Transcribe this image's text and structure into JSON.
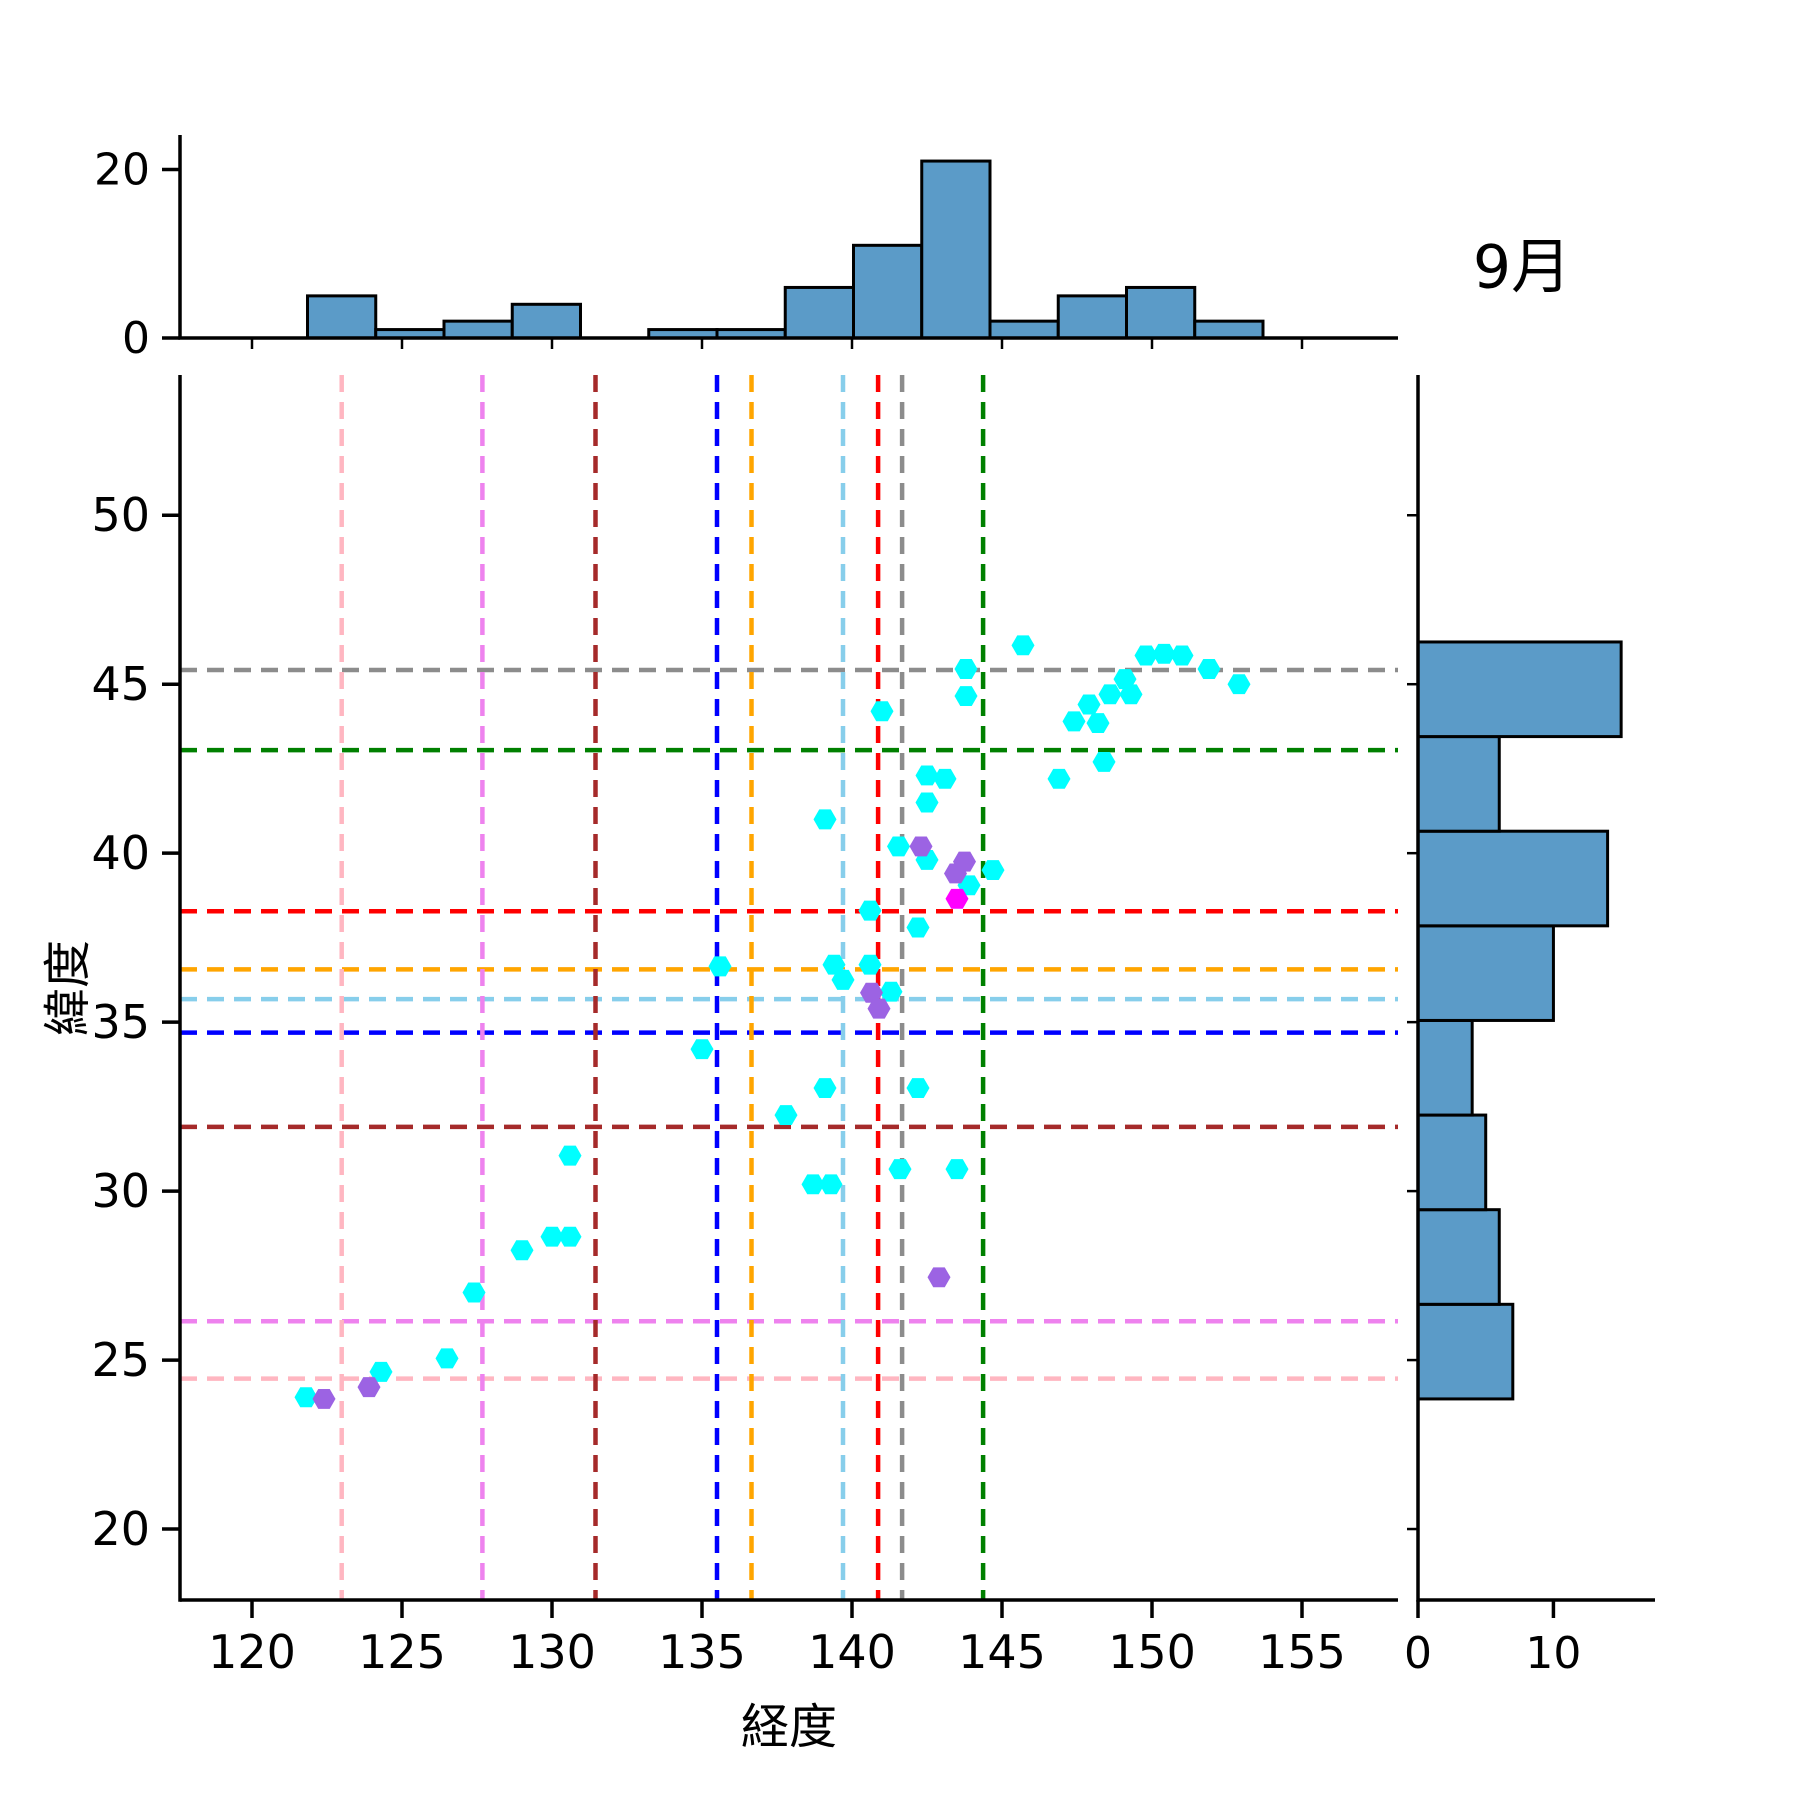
{
  "title": "9月",
  "axes": {
    "xlabel": "経度",
    "ylabel": "緯度",
    "x_tick_labels": [
      "120",
      "125",
      "130",
      "135",
      "140",
      "145",
      "150",
      "155"
    ],
    "x_tick_values": [
      120,
      125,
      130,
      135,
      140,
      145,
      150,
      155
    ],
    "y_tick_labels": [
      "20",
      "25",
      "30",
      "35",
      "40",
      "45",
      "50"
    ],
    "y_tick_values": [
      20,
      25,
      30,
      35,
      40,
      45,
      50
    ]
  },
  "marginal_top": {
    "tick_labels": [
      "0",
      "20"
    ],
    "tick_values": [
      0,
      20
    ]
  },
  "marginal_right": {
    "tick_labels": [
      "0",
      "10"
    ],
    "tick_values": [
      0,
      10
    ]
  },
  "colors": {
    "histogram_fill": "#5b9bc8",
    "histogram_edge": "#000000",
    "track_point": "#00ffff",
    "secondary_point": "#9c63e3",
    "highlight_point": "#ff00ff",
    "axis": "#000000"
  },
  "chart_data": [
    {
      "type": "scatter",
      "name": "main-jointplot",
      "title": "9月",
      "xlabel": "経度",
      "ylabel": "緯度",
      "xlim": [
        117.6,
        158.2
      ],
      "ylim": [
        17.9,
        54.15
      ],
      "grid": false,
      "marker": "hexagon",
      "series": [
        {
          "name": "cyan-track-points",
          "color": "#00ffff",
          "points": [
            [
              121.8,
              23.9
            ],
            [
              124.3,
              24.65
            ],
            [
              126.5,
              25.05
            ],
            [
              127.4,
              27.0
            ],
            [
              129.0,
              28.25
            ],
            [
              130.0,
              28.65
            ],
            [
              130.6,
              28.65
            ],
            [
              130.6,
              31.05
            ],
            [
              135.0,
              34.2
            ],
            [
              135.6,
              36.65
            ],
            [
              137.8,
              32.25
            ],
            [
              138.7,
              30.2
            ],
            [
              139.3,
              30.2
            ],
            [
              139.1,
              33.05
            ],
            [
              142.2,
              33.05
            ],
            [
              141.6,
              30.65
            ],
            [
              143.5,
              30.65
            ],
            [
              139.4,
              36.7
            ],
            [
              139.7,
              36.25
            ],
            [
              140.6,
              36.7
            ],
            [
              141.3,
              35.9
            ],
            [
              140.6,
              38.3
            ],
            [
              142.2,
              37.8
            ],
            [
              139.1,
              41.0
            ],
            [
              141.55,
              40.2
            ],
            [
              142.5,
              39.8
            ],
            [
              143.9,
              39.05
            ],
            [
              144.7,
              39.5
            ],
            [
              142.5,
              42.3
            ],
            [
              143.1,
              42.2
            ],
            [
              142.5,
              41.5
            ],
            [
              141.0,
              44.2
            ],
            [
              143.8,
              45.45
            ],
            [
              143.8,
              44.65
            ],
            [
              145.7,
              46.15
            ],
            [
              146.9,
              42.2
            ],
            [
              148.4,
              42.7
            ],
            [
              147.4,
              43.9
            ],
            [
              147.9,
              44.4
            ],
            [
              148.2,
              43.85
            ],
            [
              148.6,
              44.7
            ],
            [
              149.1,
              45.15
            ],
            [
              149.3,
              44.7
            ],
            [
              149.8,
              45.85
            ],
            [
              150.4,
              45.9
            ],
            [
              151.0,
              45.85
            ],
            [
              151.9,
              45.45
            ],
            [
              152.9,
              45.0
            ]
          ]
        },
        {
          "name": "purple-points",
          "color": "#9c63e3",
          "points": [
            [
              122.4,
              23.85
            ],
            [
              123.9,
              24.2
            ],
            [
              142.9,
              27.45
            ],
            [
              140.65,
              35.87
            ],
            [
              140.9,
              35.4
            ],
            [
              142.3,
              40.2
            ],
            [
              143.75,
              39.75
            ],
            [
              143.45,
              39.4
            ]
          ]
        },
        {
          "name": "magenta-point",
          "color": "#ff00ff",
          "points": [
            [
              143.5,
              38.65
            ]
          ]
        }
      ],
      "reference_lines": [
        {
          "name": "pink",
          "color": "#ffb6c1",
          "x": 122.99,
          "y": 24.45
        },
        {
          "name": "violet",
          "color": "#ee82ee",
          "x": 127.68,
          "y": 26.15
        },
        {
          "name": "brown",
          "color": "#a52a2a",
          "x": 131.45,
          "y": 31.9
        },
        {
          "name": "blue",
          "color": "#0000ff",
          "x": 135.5,
          "y": 34.69
        },
        {
          "name": "orange",
          "color": "#ffa500",
          "x": 136.65,
          "y": 36.56
        },
        {
          "name": "skyblue",
          "color": "#87ceeb",
          "x": 139.7,
          "y": 35.68
        },
        {
          "name": "red",
          "color": "#ff0000",
          "x": 140.87,
          "y": 38.28
        },
        {
          "name": "gray",
          "color": "#8c8c8c",
          "x": 141.67,
          "y": 45.42
        },
        {
          "name": "green",
          "color": "#008000",
          "x": 144.37,
          "y": 43.05
        }
      ]
    },
    {
      "type": "bar",
      "name": "top-marginal-histogram",
      "orientation": "vertical",
      "axis": "longitude",
      "bin_start": 121.85,
      "bin_width": 2.275,
      "counts": [
        5,
        1,
        2,
        4,
        0,
        1,
        1,
        6,
        11,
        21,
        2,
        5,
        6,
        2
      ],
      "ylim": [
        0,
        23.5
      ],
      "yticks": [
        0,
        20
      ]
    },
    {
      "type": "bar",
      "name": "right-marginal-histogram",
      "orientation": "horizontal",
      "axis": "latitude",
      "bin_start": 23.85,
      "bin_width": 2.8,
      "counts": [
        7,
        6,
        5,
        4,
        10,
        14,
        6,
        15
      ],
      "xlim": [
        0,
        17.5
      ],
      "xticks": [
        0,
        10
      ]
    }
  ]
}
